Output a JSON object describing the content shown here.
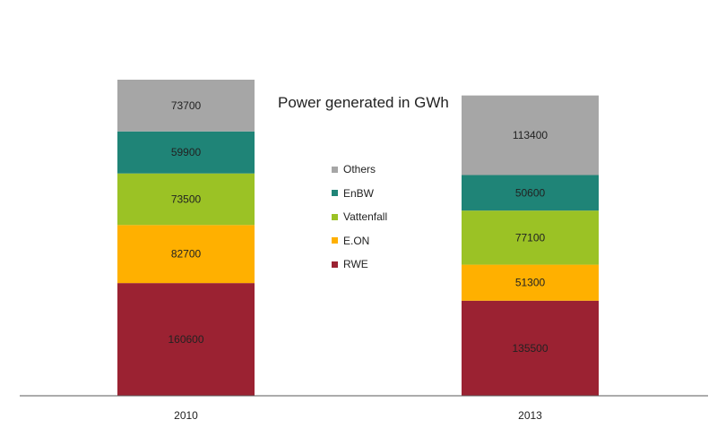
{
  "chart_data": {
    "type": "bar",
    "stacked": true,
    "title": "Power generated in GWh",
    "categories": [
      "2010",
      "2013"
    ],
    "series": [
      {
        "name": "RWE",
        "color": "#9B2232",
        "values": [
          160600,
          135500
        ]
      },
      {
        "name": "E.ON",
        "color": "#FFB000",
        "values": [
          82700,
          51300
        ]
      },
      {
        "name": "Vattenfall",
        "color": "#9BC225",
        "values": [
          73500,
          77100
        ]
      },
      {
        "name": "EnBW",
        "color": "#1F8477",
        "values": [
          59900,
          50600
        ]
      },
      {
        "name": "Others",
        "color": "#A6A6A6",
        "values": [
          73700,
          113400
        ]
      }
    ],
    "legend_order": [
      "Others",
      "EnBW",
      "Vattenfall",
      "E.ON",
      "RWE"
    ],
    "legend_position": "center",
    "grid": false,
    "data_labels": true
  }
}
